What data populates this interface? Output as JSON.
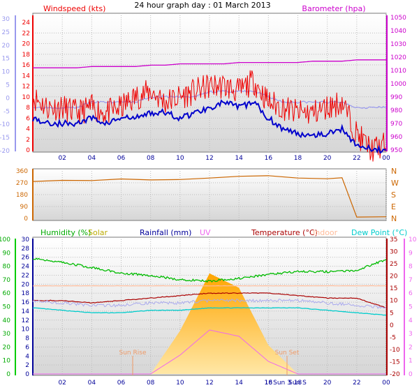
{
  "title": "24 hour graph day : 01 March 2013",
  "panel1": {
    "left_label": "Windspeed (kts)",
    "right_label": "Barometer (hpa)",
    "ticks_left_red": [
      "24",
      "22",
      "20",
      "18",
      "16",
      "14",
      "12",
      "10",
      "8",
      "6",
      "4",
      "2",
      "0"
    ],
    "ticks_left_blue": [
      "30",
      "25",
      "20",
      "15",
      "10",
      "5",
      "0",
      "-5",
      "-10",
      "-15",
      "-20"
    ],
    "ticks_right": [
      "1050",
      "1040",
      "1030",
      "1020",
      "1010",
      "1000",
      "990",
      "980",
      "970",
      "960",
      "950"
    ],
    "colors": {
      "wind_gust": "#ee0000",
      "wind_avg": "#0000cc",
      "barometer": "#cc00cc",
      "dashed": "#9999ee"
    }
  },
  "panel2": {
    "ticks_left": [
      "360",
      "270",
      "180",
      "90",
      "0"
    ],
    "ticks_right": [
      "N",
      "W",
      "S",
      "E",
      "N"
    ],
    "color": "#cc6600"
  },
  "panel3": {
    "labels": [
      {
        "text": "Humidity (%)",
        "color": "#00aa00"
      },
      {
        "text": "Solar",
        "color": "#bbaa00"
      },
      {
        "text": "Rainfall (mm)",
        "color": "#000099"
      },
      {
        "text": "UV",
        "color": "#ee66ee"
      },
      {
        "text": "Temperature (°C)",
        "color": "#aa0000"
      },
      {
        "text": "Indoor",
        "color": "#ffbb99"
      },
      {
        "text": "Dew Point (°C)",
        "color": "#00cccc"
      }
    ],
    "ticks_left_green": [
      "100",
      "90",
      "80",
      "70",
      "60",
      "50",
      "40",
      "30",
      "20",
      "10",
      "0"
    ],
    "ticks_left_blue": [
      "30",
      "28",
      "26",
      "24",
      "22",
      "20",
      "18",
      "16",
      "14",
      "12",
      "10",
      "8",
      "6",
      "4",
      "2",
      "0"
    ],
    "ticks_right_red": [
      "35",
      "30",
      "25",
      "20",
      "15",
      "10",
      "5",
      "0",
      "-5",
      "-10",
      "-15",
      "-20"
    ],
    "ticks_right_pink": [
      "10",
      "9",
      "8",
      "7",
      "6",
      "5",
      "4",
      "3",
      "2",
      "1",
      "0"
    ],
    "sunrise": "Sun Rise",
    "sunset": "Sun Set",
    "sunrise_bottom": "Sun 3",
    "sunset_bottom": "Sun S",
    "cut_tick": "18"
  },
  "x_ticks": [
    "02",
    "04",
    "06",
    "08",
    "10",
    "12",
    "14",
    "16",
    "18",
    "20",
    "22",
    "00"
  ],
  "chart_data": [
    {
      "type": "line",
      "title": "24 hour graph day : 01 March 2013",
      "xlabel": "",
      "x": [
        "00",
        "01",
        "02",
        "03",
        "04",
        "05",
        "06",
        "07",
        "08",
        "09",
        "10",
        "11",
        "12",
        "13",
        "14",
        "15",
        "16",
        "17",
        "18",
        "19",
        "20",
        "21",
        "22",
        "23",
        "24"
      ],
      "series": [
        {
          "name": "Windspeed (kts)",
          "axis": "left",
          "values": [
            10,
            8,
            8,
            7,
            8,
            7,
            8,
            10,
            11,
            9,
            10,
            11,
            12,
            12,
            11,
            13,
            9,
            8,
            7,
            7,
            8,
            9,
            3,
            0,
            1
          ]
        },
        {
          "name": "",
          "axis": "left",
          "values": [
            6,
            5,
            5,
            5,
            6,
            5,
            6,
            6,
            7,
            7,
            6,
            7,
            8,
            9,
            8,
            9,
            6,
            4,
            3,
            3,
            3,
            4,
            1,
            0,
            0
          ]
        },
        {
          "name": "Barometer (hpa)",
          "axis": "right",
          "values": [
            1012,
            1012,
            1012,
            1012,
            1013,
            1013,
            1013,
            1013,
            1014,
            1014,
            1015,
            1015,
            1015,
            1015,
            1016,
            1016,
            1016,
            1016,
            1016,
            1017,
            1017,
            1017,
            1018,
            1018,
            1018
          ]
        }
      ],
      "ylim_left": [
        0,
        25
      ],
      "ylim_right": [
        950,
        1050
      ]
    },
    {
      "type": "line",
      "title": "",
      "x": [
        "00",
        "02",
        "04",
        "06",
        "08",
        "10",
        "12",
        "14",
        "16",
        "18",
        "20",
        "21",
        "22",
        "24"
      ],
      "series": [
        {
          "name": "",
          "values": [
            275,
            285,
            290,
            295,
            295,
            300,
            305,
            315,
            320,
            305,
            300,
            310,
            10,
            10
          ]
        }
      ],
      "ylim": [
        0,
        360
      ]
    },
    {
      "type": "line",
      "title": "",
      "x": [
        "00",
        "02",
        "04",
        "06",
        "08",
        "10",
        "12",
        "14",
        "16",
        "18",
        "20",
        "22",
        "24"
      ],
      "series": [
        {
          "name": "Humidity (%)",
          "values": [
            86,
            83,
            79,
            75,
            73,
            70,
            69,
            71,
            74,
            76,
            76,
            77,
            85
          ]
        },
        {
          "name": "Temperature (°C)",
          "values": [
            10,
            10,
            9,
            10,
            11,
            12,
            13,
            13,
            13,
            12,
            11,
            11,
            7
          ]
        },
        {
          "name": "Indoor",
          "values": [
            16,
            16,
            16,
            16,
            16,
            16,
            16,
            16,
            16,
            16,
            16,
            16,
            16
          ]
        },
        {
          "name": "Dew Point (°C)",
          "values": [
            7,
            6,
            5,
            5,
            6,
            6,
            7,
            7,
            7,
            7,
            6,
            5,
            4
          ]
        },
        {
          "name": "Solar",
          "values": [
            0,
            0,
            0,
            0,
            0,
            3,
            7,
            6,
            2,
            0,
            0,
            0,
            0
          ]
        }
      ],
      "ylim_left": [
        0,
        100
      ],
      "ylim_right": [
        -20,
        35
      ]
    }
  ]
}
